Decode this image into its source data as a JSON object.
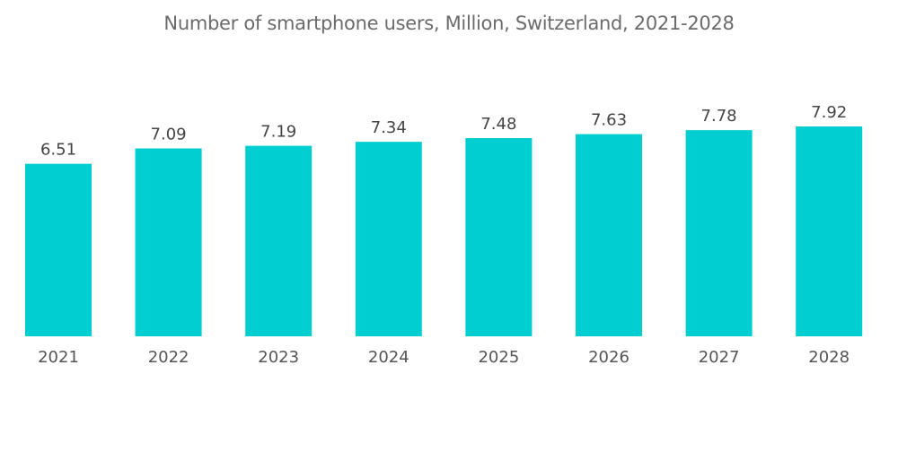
{
  "chart_data": {
    "type": "bar",
    "title": "Number of smartphone users, Million, Switzerland, 2021-2028",
    "xlabel": "",
    "ylabel": "",
    "categories": [
      "2021",
      "2022",
      "2023",
      "2024",
      "2025",
      "2026",
      "2027",
      "2028"
    ],
    "values": [
      6.51,
      7.09,
      7.19,
      7.34,
      7.48,
      7.63,
      7.78,
      7.92
    ],
    "value_labels": [
      "6.51",
      "7.09",
      "7.19",
      "7.34",
      "7.48",
      "7.63",
      "7.78",
      "7.92"
    ],
    "ylim": [
      0,
      7.92
    ],
    "grid": false,
    "legend": "none",
    "colors": {
      "bar": "#00ced1"
    }
  }
}
